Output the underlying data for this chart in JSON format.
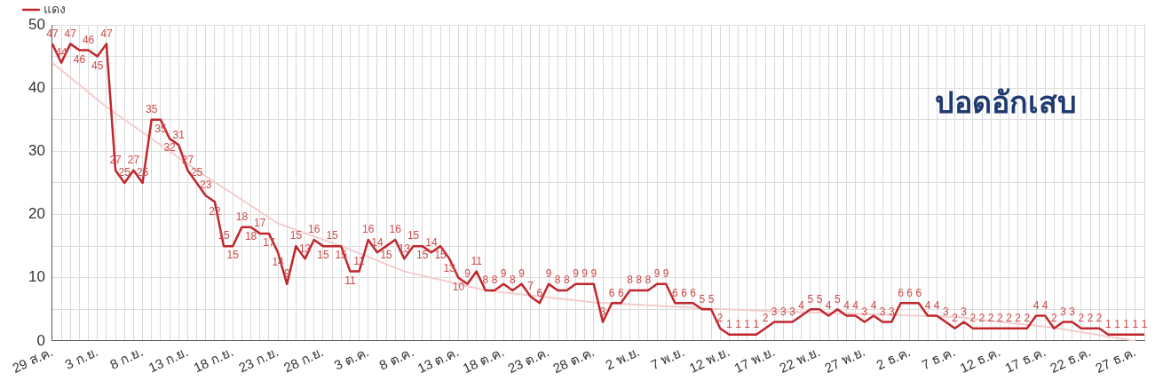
{
  "chart_data": {
    "type": "line",
    "title": "ปอดอักเสบ",
    "categories": [
      "29 ส.ค.",
      null,
      null,
      null,
      null,
      "3 ก.ย.",
      null,
      null,
      null,
      null,
      "8 ก.ย.",
      null,
      null,
      null,
      null,
      "13 ก.ย.",
      null,
      null,
      null,
      null,
      "18 ก.ย.",
      null,
      null,
      null,
      null,
      "23 ก.ย.",
      null,
      null,
      null,
      null,
      "28 ก.ย.",
      null,
      null,
      null,
      null,
      "3 ต.ค.",
      null,
      null,
      null,
      null,
      "8 ต.ค.",
      null,
      null,
      null,
      null,
      "13 ต.ค.",
      null,
      null,
      null,
      null,
      "18 ต.ค.",
      null,
      null,
      null,
      null,
      "23 ต.ค.",
      null,
      null,
      null,
      null,
      "28 ต.ค.",
      null,
      null,
      null,
      null,
      "2 พ.ย.",
      null,
      null,
      null,
      null,
      "7 พ.ย.",
      null,
      null,
      null,
      null,
      "12 พ.ย.",
      null,
      null,
      null,
      null,
      "17 พ.ย.",
      null,
      null,
      null,
      null,
      "22 พ.ย.",
      null,
      null,
      null,
      null,
      "27 พ.ย.",
      null,
      null,
      null,
      null,
      "2 ธ.ค.",
      null,
      null,
      null,
      null,
      "7 ธ.ค.",
      null,
      null,
      null,
      null,
      "12 ธ.ค.",
      null,
      null,
      null,
      null,
      "17 ธ.ค.",
      null,
      null,
      null,
      null,
      "22 ธ.ค.",
      null,
      null,
      null,
      null,
      "27 ธ.ค.",
      null
    ],
    "series": [
      {
        "name": "แดง",
        "color": "#c0272d",
        "value_labels": [
          "47",
          "44",
          "47",
          "46",
          "46",
          "45",
          "47",
          "27",
          "25",
          "27",
          "25",
          "35",
          "35",
          "32",
          "31",
          "27",
          "25",
          "23",
          "22",
          "15",
          "15",
          "18",
          "18",
          "17",
          "17",
          "14",
          "9",
          "15",
          "13",
          "16",
          "15",
          "15",
          "15",
          "11",
          "11",
          "16",
          "14",
          "15",
          "16",
          "13",
          "15",
          "15",
          "14",
          "15",
          "13",
          "10",
          "9",
          "11",
          "8",
          "8",
          "9",
          "8",
          "9",
          "7",
          "6",
          "9",
          "8",
          "8",
          "9",
          "9",
          "9",
          "3",
          "6",
          "6",
          "8",
          "8",
          "8",
          "9",
          "9",
          "6",
          "6",
          "6",
          "5",
          "5",
          "2",
          "1",
          "1",
          "1",
          "1",
          "2",
          "3",
          "3",
          "3",
          "4",
          "5",
          "5",
          "4",
          "5",
          "4",
          "4",
          "3",
          "4",
          "3",
          "3",
          "6",
          "6",
          "6",
          "4",
          "4",
          "3",
          "2",
          "3",
          "2",
          "2",
          "2",
          "2",
          "2",
          "2",
          "2",
          "4",
          "4",
          "2",
          "3",
          "3",
          "2",
          "2",
          "2",
          "1",
          "1",
          "1",
          "1",
          "1"
        ],
        "values": [
          47,
          44,
          47,
          46,
          46,
          45,
          47,
          27,
          25,
          27,
          25,
          35,
          35,
          32,
          31,
          27,
          25,
          23,
          22,
          15,
          15,
          18,
          18,
          17,
          17,
          14,
          9,
          15,
          13,
          16,
          15,
          15,
          15,
          11,
          11,
          16,
          14,
          15,
          16,
          13,
          15,
          15,
          14,
          15,
          13,
          10,
          9,
          11,
          8,
          8,
          9,
          8,
          9,
          7,
          6,
          9,
          8,
          8,
          9,
          9,
          9,
          3,
          6,
          6,
          8,
          8,
          8,
          9,
          9,
          6,
          6,
          6,
          5,
          5,
          2,
          1,
          1,
          1,
          1,
          2,
          3,
          3,
          3,
          4,
          5,
          5,
          4,
          5,
          4,
          4,
          3,
          4,
          3,
          3,
          6,
          6,
          6,
          4,
          4,
          3,
          2,
          3,
          2,
          2,
          2,
          2,
          2,
          2,
          2,
          4,
          4,
          2,
          3,
          3,
          2,
          2,
          2,
          1,
          1,
          1,
          1,
          1
        ]
      },
      {
        "type": "line",
        "color": "#f4cccc",
        "values": [
          44,
          null,
          null,
          null,
          null,
          null,
          37,
          null,
          null,
          null,
          null,
          null,
          null,
          null,
          null,
          null,
          27,
          null,
          null,
          null,
          null,
          null,
          null,
          null,
          null,
          18.6,
          null,
          null,
          null,
          null,
          null,
          null,
          15,
          null,
          null,
          null,
          null,
          null,
          null,
          11,
          null,
          null,
          null,
          null,
          null,
          null,
          null,
          null,
          8,
          null,
          null,
          null,
          null,
          null,
          null,
          null,
          null,
          null,
          null,
          null,
          6.1,
          null,
          null,
          null,
          null,
          null,
          null,
          null,
          null,
          null,
          null,
          null,
          null,
          5.1,
          null,
          null,
          null,
          null,
          null,
          null,
          4.7,
          null,
          null,
          null,
          null,
          null,
          null,
          null,
          null,
          null,
          null,
          null,
          null,
          null,
          null,
          null,
          null,
          null,
          null,
          null,
          3.8,
          null,
          null,
          null,
          null,
          null,
          null,
          null,
          null,
          null,
          null,
          2.1,
          null,
          null,
          null,
          null,
          null,
          null,
          null,
          null,
          0,
          null
        ]
      }
    ],
    "ylim": [
      0,
      50
    ],
    "yticks": [
      0,
      {
        "value": 5,
        "label": null
      },
      10,
      {
        "value": 15,
        "label": null
      },
      20,
      {
        "value": 25,
        "label": null
      },
      30,
      {
        "value": 35,
        "label": null
      },
      40,
      {
        "value": 45,
        "label": null
      },
      50
    ],
    "grid": true,
    "legend": "top left",
    "marker": "none",
    "line_style": "solid"
  }
}
